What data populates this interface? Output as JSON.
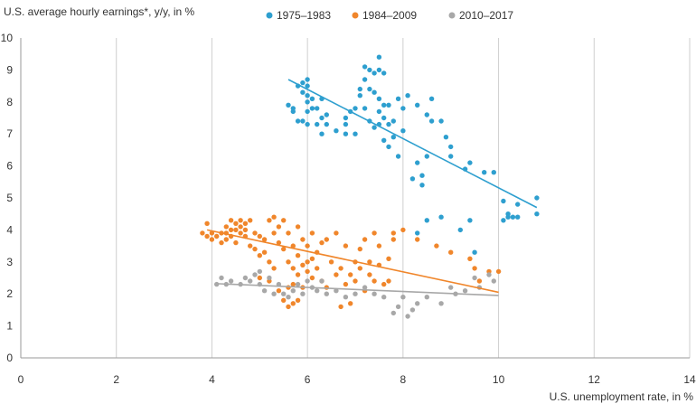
{
  "chart_data": {
    "type": "scatter",
    "title": "",
    "ylabel": "U.S. average hourly earnings*, y/y, in %",
    "xlabel": "U.S. unemployment rate, in %",
    "xlim": [
      0,
      14
    ],
    "ylim": [
      0,
      10
    ],
    "x_ticks": [
      "0",
      "2",
      "4",
      "6",
      "8",
      "10",
      "12",
      "14"
    ],
    "y_ticks": [
      "0",
      "1",
      "2",
      "3",
      "4",
      "5",
      "6",
      "7",
      "8",
      "9",
      "10"
    ],
    "grid": "vertical",
    "legend": "top",
    "series": [
      {
        "name": "1975–1983",
        "color": "#2e9fcf",
        "points": [
          [
            5.6,
            7.9
          ],
          [
            5.7,
            7.7
          ],
          [
            5.7,
            7.8
          ],
          [
            5.8,
            8.5
          ],
          [
            5.8,
            7.4
          ],
          [
            5.9,
            8.6
          ],
          [
            5.9,
            8.3
          ],
          [
            5.9,
            7.4
          ],
          [
            6.0,
            8.5
          ],
          [
            6.0,
            8.0
          ],
          [
            6.0,
            7.7
          ],
          [
            6.0,
            7.3
          ],
          [
            6.0,
            8.2
          ],
          [
            6.0,
            8.7
          ],
          [
            6.1,
            8.1
          ],
          [
            6.1,
            7.8
          ],
          [
            6.2,
            7.8
          ],
          [
            6.2,
            7.3
          ],
          [
            6.3,
            8.1
          ],
          [
            6.3,
            7.5
          ],
          [
            6.3,
            7.0
          ],
          [
            6.4,
            7.3
          ],
          [
            6.4,
            7.6
          ],
          [
            6.6,
            7.1
          ],
          [
            6.8,
            7.5
          ],
          [
            6.8,
            7.3
          ],
          [
            6.8,
            7.0
          ],
          [
            6.9,
            7.7
          ],
          [
            7.0,
            7.0
          ],
          [
            7.0,
            7.8
          ],
          [
            7.1,
            8.2
          ],
          [
            7.1,
            8.4
          ],
          [
            7.2,
            9.1
          ],
          [
            7.2,
            8.7
          ],
          [
            7.2,
            7.8
          ],
          [
            7.3,
            9.0
          ],
          [
            7.3,
            8.4
          ],
          [
            7.3,
            7.4
          ],
          [
            7.4,
            8.9
          ],
          [
            7.4,
            7.2
          ],
          [
            7.4,
            8.3
          ],
          [
            7.5,
            9.0
          ],
          [
            7.5,
            9.4
          ],
          [
            7.5,
            8.1
          ],
          [
            7.5,
            7.7
          ],
          [
            7.5,
            7.3
          ],
          [
            7.6,
            8.9
          ],
          [
            7.6,
            7.5
          ],
          [
            7.6,
            6.8
          ],
          [
            7.6,
            7.9
          ],
          [
            7.7,
            7.9
          ],
          [
            7.7,
            7.3
          ],
          [
            7.7,
            6.6
          ],
          [
            7.8,
            7.4
          ],
          [
            7.8,
            6.9
          ],
          [
            7.9,
            8.1
          ],
          [
            7.9,
            6.3
          ],
          [
            8.0,
            7.8
          ],
          [
            8.0,
            7.1
          ],
          [
            8.1,
            8.2
          ],
          [
            8.2,
            5.6
          ],
          [
            8.3,
            7.9
          ],
          [
            8.3,
            6.1
          ],
          [
            8.3,
            3.9
          ],
          [
            8.4,
            5.7
          ],
          [
            8.4,
            5.4
          ],
          [
            8.5,
            7.6
          ],
          [
            8.5,
            6.3
          ],
          [
            8.5,
            4.3
          ],
          [
            8.6,
            7.4
          ],
          [
            8.6,
            8.1
          ],
          [
            8.8,
            7.4
          ],
          [
            8.8,
            4.4
          ],
          [
            8.9,
            6.9
          ],
          [
            9.0,
            6.6
          ],
          [
            9.0,
            6.3
          ],
          [
            9.2,
            4.0
          ],
          [
            9.3,
            5.9
          ],
          [
            9.4,
            6.1
          ],
          [
            9.4,
            4.3
          ],
          [
            9.5,
            3.3
          ],
          [
            9.7,
            5.8
          ],
          [
            9.9,
            5.8
          ],
          [
            10.1,
            4.9
          ],
          [
            10.1,
            4.3
          ],
          [
            10.2,
            4.4
          ],
          [
            10.2,
            4.5
          ],
          [
            10.3,
            4.4
          ],
          [
            10.4,
            4.4
          ],
          [
            10.4,
            4.8
          ],
          [
            10.8,
            5.0
          ],
          [
            10.8,
            4.5
          ]
        ],
        "trend": [
          [
            5.6,
            8.7
          ],
          [
            10.8,
            4.7
          ]
        ]
      },
      {
        "name": "1984–2009",
        "color": "#f0862b",
        "points": [
          [
            3.8,
            3.9
          ],
          [
            3.9,
            3.8
          ],
          [
            3.9,
            4.2
          ],
          [
            4.0,
            3.7
          ],
          [
            4.0,
            3.9
          ],
          [
            4.1,
            3.8
          ],
          [
            4.2,
            3.9
          ],
          [
            4.2,
            3.6
          ],
          [
            4.3,
            4.1
          ],
          [
            4.3,
            3.7
          ],
          [
            4.3,
            3.9
          ],
          [
            4.4,
            4.3
          ],
          [
            4.4,
            4.0
          ],
          [
            4.4,
            3.8
          ],
          [
            4.5,
            4.2
          ],
          [
            4.5,
            3.6
          ],
          [
            4.5,
            4.0
          ],
          [
            4.6,
            4.3
          ],
          [
            4.6,
            3.9
          ],
          [
            4.6,
            4.1
          ],
          [
            4.7,
            4.2
          ],
          [
            4.7,
            3.8
          ],
          [
            4.7,
            4.0
          ],
          [
            4.8,
            4.3
          ],
          [
            4.8,
            3.5
          ],
          [
            4.9,
            3.9
          ],
          [
            4.9,
            3.4
          ],
          [
            5.0,
            3.8
          ],
          [
            5.0,
            3.2
          ],
          [
            5.0,
            2.5
          ],
          [
            5.1,
            3.7
          ],
          [
            5.1,
            3.3
          ],
          [
            5.2,
            4.3
          ],
          [
            5.2,
            3.0
          ],
          [
            5.2,
            2.4
          ],
          [
            5.3,
            4.4
          ],
          [
            5.3,
            3.9
          ],
          [
            5.3,
            2.8
          ],
          [
            5.4,
            4.1
          ],
          [
            5.4,
            3.6
          ],
          [
            5.4,
            2.1
          ],
          [
            5.5,
            4.3
          ],
          [
            5.5,
            3.4
          ],
          [
            5.5,
            1.8
          ],
          [
            5.6,
            3.9
          ],
          [
            5.6,
            3.0
          ],
          [
            5.6,
            2.2
          ],
          [
            5.6,
            1.6
          ],
          [
            5.7,
            3.5
          ],
          [
            5.7,
            2.8
          ],
          [
            5.7,
            2.3
          ],
          [
            5.7,
            1.7
          ],
          [
            5.8,
            4.1
          ],
          [
            5.8,
            3.2
          ],
          [
            5.8,
            2.6
          ],
          [
            5.8,
            1.8
          ],
          [
            5.9,
            3.7
          ],
          [
            5.9,
            2.9
          ],
          [
            5.9,
            2.2
          ],
          [
            6.0,
            3.5
          ],
          [
            6.0,
            3.0
          ],
          [
            6.0,
            2.7
          ],
          [
            6.1,
            3.1
          ],
          [
            6.1,
            2.5
          ],
          [
            6.1,
            3.9
          ],
          [
            6.2,
            3.3
          ],
          [
            6.2,
            2.8
          ],
          [
            6.3,
            3.6
          ],
          [
            6.3,
            2.4
          ],
          [
            6.4,
            3.7
          ],
          [
            6.4,
            2.2
          ],
          [
            6.5,
            3.0
          ],
          [
            6.6,
            3.9
          ],
          [
            6.6,
            2.6
          ],
          [
            6.7,
            1.6
          ],
          [
            6.7,
            2.8
          ],
          [
            6.8,
            2.3
          ],
          [
            6.8,
            3.5
          ],
          [
            6.9,
            1.7
          ],
          [
            6.9,
            2.6
          ],
          [
            7.0,
            3.0
          ],
          [
            7.0,
            2.4
          ],
          [
            7.1,
            3.4
          ],
          [
            7.1,
            2.8
          ],
          [
            7.2,
            3.7
          ],
          [
            7.2,
            2.1
          ],
          [
            7.3,
            3.0
          ],
          [
            7.3,
            2.6
          ],
          [
            7.4,
            3.9
          ],
          [
            7.4,
            2.4
          ],
          [
            7.5,
            3.5
          ],
          [
            7.5,
            2.9
          ],
          [
            7.6,
            2.3
          ],
          [
            7.7,
            3.1
          ],
          [
            7.7,
            2.4
          ],
          [
            7.8,
            3.7
          ],
          [
            7.8,
            3.9
          ],
          [
            8.0,
            4.0
          ],
          [
            8.3,
            3.7
          ],
          [
            8.7,
            3.5
          ],
          [
            9.0,
            3.3
          ],
          [
            9.4,
            3.1
          ],
          [
            9.5,
            2.8
          ],
          [
            9.6,
            2.4
          ],
          [
            9.8,
            2.7
          ],
          [
            10.0,
            2.7
          ]
        ],
        "trend": [
          [
            3.9,
            4.0
          ],
          [
            10.0,
            2.05
          ]
        ]
      },
      {
        "name": "2010–2017",
        "color": "#a8a8a8",
        "points": [
          [
            4.1,
            2.3
          ],
          [
            4.2,
            2.5
          ],
          [
            4.3,
            2.3
          ],
          [
            4.4,
            2.4
          ],
          [
            4.6,
            2.3
          ],
          [
            4.7,
            2.5
          ],
          [
            4.8,
            2.4
          ],
          [
            4.9,
            2.6
          ],
          [
            5.0,
            2.3
          ],
          [
            5.0,
            2.7
          ],
          [
            5.1,
            2.1
          ],
          [
            5.2,
            2.5
          ],
          [
            5.3,
            2.0
          ],
          [
            5.4,
            2.3
          ],
          [
            5.5,
            2.0
          ],
          [
            5.6,
            1.9
          ],
          [
            5.7,
            2.1
          ],
          [
            5.8,
            2.3
          ],
          [
            5.9,
            2.0
          ],
          [
            6.0,
            2.4
          ],
          [
            6.1,
            2.2
          ],
          [
            6.2,
            2.1
          ],
          [
            6.3,
            2.4
          ],
          [
            6.4,
            2.0
          ],
          [
            6.6,
            2.1
          ],
          [
            6.8,
            1.9
          ],
          [
            7.0,
            2.0
          ],
          [
            7.2,
            2.2
          ],
          [
            7.4,
            2.0
          ],
          [
            7.6,
            1.9
          ],
          [
            7.8,
            1.4
          ],
          [
            7.9,
            1.6
          ],
          [
            8.0,
            1.9
          ],
          [
            8.1,
            1.3
          ],
          [
            8.2,
            1.5
          ],
          [
            8.3,
            1.7
          ],
          [
            8.5,
            1.9
          ],
          [
            8.8,
            1.7
          ],
          [
            9.0,
            2.2
          ],
          [
            9.1,
            2.0
          ],
          [
            9.3,
            2.1
          ],
          [
            9.5,
            2.5
          ],
          [
            9.6,
            2.2
          ],
          [
            9.8,
            2.6
          ],
          [
            9.9,
            2.4
          ]
        ],
        "trend": [
          [
            4.1,
            2.32
          ],
          [
            10.0,
            1.95
          ]
        ]
      }
    ]
  }
}
